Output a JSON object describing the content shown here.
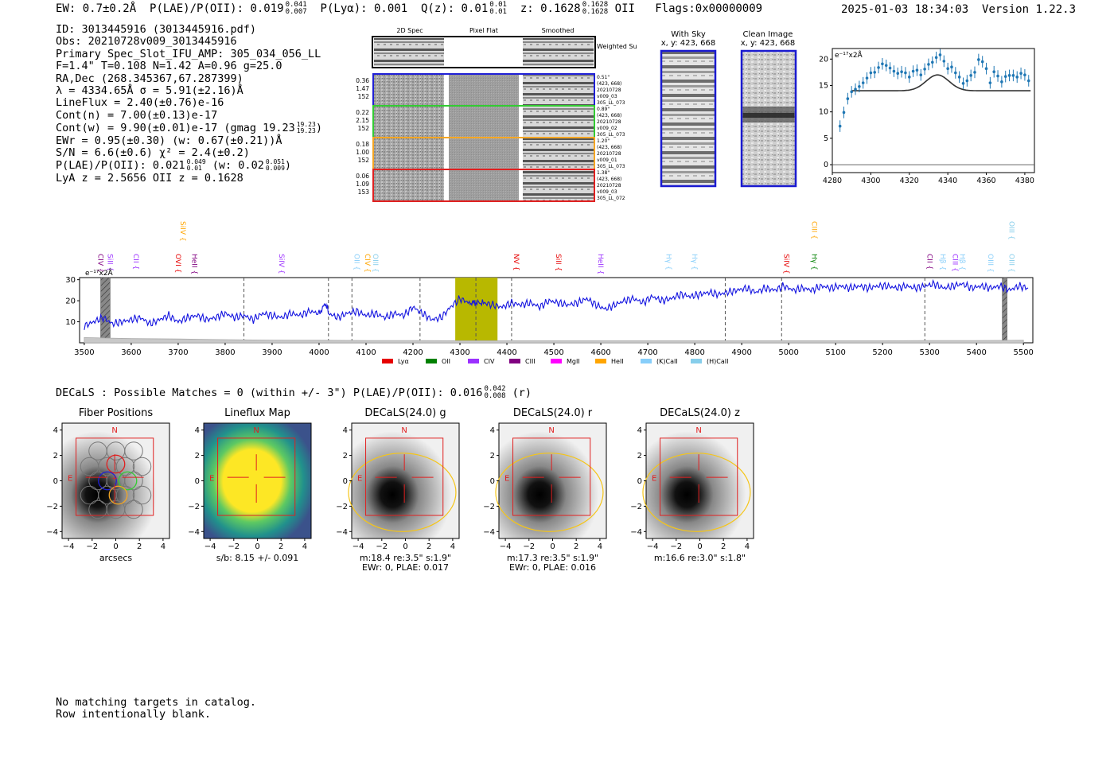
{
  "header": {
    "ew": "EW: 0.7±0.2Å",
    "plae": "P(LAE)/P(OII): 0.019",
    "plae_hi": "0.041",
    "plae_lo": "0.007",
    "plya": "P(Lyα): 0.001",
    "qz": "Q(z): 0.01",
    "qz_hi": "0.01",
    "qz_lo": "0.01",
    "z": "z: 0.1628",
    "z_hi": "0.1628",
    "z_lo": "0.1628",
    "z_line": "OII",
    "flags": "Flags:0x00000009",
    "datetime": "2025-01-03 18:34:03",
    "version": "Version 1.22.3"
  },
  "info": {
    "id": "ID: 3013445916 (3013445916.pdf)",
    "obs": "Obs: 20210728v009_3013445916",
    "slot": "Primary Spec_Slot_IFU_AMP: 305_034_056_LL",
    "fwhm": "F=1.4\"  T=0.108  N=1.42  A=0.96  g=25.0",
    "radec": "RA,Dec (268.345367,67.287399)",
    "lambda": "λ = 4334.65Å  σ = 5.91(±2.16)Å",
    "lineflux": "LineFlux = 2.40(±0.76)e-16",
    "contn": "Cont(n) = 7.00(±0.13)e-17",
    "contw": "Cont(w) = 9.90(±0.01)e-17 (gmag 19.23",
    "contw_hi": "19.23",
    "contw_lo": "19.23",
    "ewr": "EWr = 0.95(±0.30) (w: 0.67(±0.21))Å",
    "sn": "S/N = 6.6(±0.6)  χ² = 2.4(±0.2)",
    "plae2": "P(LAE)/P(OII): 0.021",
    "plae2_hi": "0.049",
    "plae2_lo": "0.01",
    "plae2_w": "(w: 0.02",
    "plae2_w_hi": "0.051",
    "plae2_w_lo": "0.009",
    "lyaz": "LyA z = 2.5656  OII z = 0.1628"
  },
  "cutouts": {
    "col_2dspec": "2D Spec",
    "col_pixflat": "Pixel Flat",
    "col_smoothed": "Smoothed",
    "weighted_sum": "Weighted Sum",
    "rows": [
      {
        "n1": "0.36",
        "n2": "1.47",
        "n3": "152",
        "r1": "0.51\"",
        "r2": "(423, 668)",
        "r3": "20210728",
        "r4": "v009_03",
        "r5": "305_LL_073",
        "color": "#1f1fd6"
      },
      {
        "n1": "0.22",
        "n2": "2.15",
        "n3": "152",
        "r1": "0.89\"",
        "r2": "(423, 668)",
        "r3": "20210728",
        "r4": "v009_02",
        "r5": "305_LL_073",
        "color": "#33cc33"
      },
      {
        "n1": "0.18",
        "n2": "1.00",
        "n3": "152",
        "r1": "1.20\"",
        "r2": "(423, 668)",
        "r3": "20210728",
        "r4": "v009_01",
        "r5": "305_LL_073",
        "color": "#f5a623"
      },
      {
        "n1": "0.06",
        "n2": "1.09",
        "n3": "153",
        "r1": "1.38\"",
        "r2": "(423, 668)",
        "r3": "20210728",
        "r4": "v009_03",
        "r5": "305_LL_072",
        "color": "#e02020"
      }
    ]
  },
  "sky": {
    "with_sky_title": "With Sky",
    "with_sky_xy": "x, y: 423, 668",
    "clean_title": "Clean Image",
    "clean_xy": "x, y: 423, 668"
  },
  "zoom_chart": {
    "unit_label": "e⁻¹⁷x2Å",
    "xlim": [
      4280,
      4385
    ],
    "ylim": [
      -1.5,
      22
    ],
    "xticks": [
      4280,
      4300,
      4320,
      4340,
      4360,
      4380
    ],
    "yticks": [
      0,
      5,
      10,
      15,
      20
    ]
  },
  "chart_data": [
    {
      "type": "scatter",
      "title": "",
      "xlabel": "",
      "ylabel": "e⁻¹⁷x2Å",
      "x": [
        4284,
        4286,
        4288,
        4290,
        4292,
        4294,
        4296,
        4298,
        4300,
        4302,
        4304,
        4306,
        4308,
        4310,
        4312,
        4314,
        4316,
        4318,
        4320,
        4322,
        4324,
        4326,
        4328,
        4330,
        4332,
        4334,
        4336,
        4338,
        4340,
        4342,
        4344,
        4346,
        4348,
        4350,
        4352,
        4354,
        4356,
        4358,
        4360,
        4362,
        4364,
        4366,
        4368,
        4370,
        4372,
        4374,
        4376,
        4378,
        4380,
        4382
      ],
      "y": [
        7.3,
        9.9,
        12.5,
        13.8,
        14.3,
        14.8,
        15.5,
        16.4,
        17.4,
        17.5,
        18.4,
        19.1,
        18.8,
        18.3,
        17.7,
        17.3,
        17.6,
        17.4,
        16.6,
        17.7,
        17.9,
        17.0,
        18.1,
        19.0,
        19.4,
        20.3,
        20.8,
        19.6,
        18.2,
        18.5,
        17.4,
        16.6,
        15.4,
        15.9,
        16.9,
        17.5,
        19.9,
        19.5,
        18.2,
        15.5,
        17.6,
        16.8,
        15.7,
        16.7,
        16.9,
        16.9,
        16.6,
        17.3,
        17.0,
        15.9
      ],
      "fit_baseline": 14.0,
      "fit_peak": 17.0,
      "fit_center": 4334.65,
      "fit_sigma": 5.91,
      "xlim": [
        4280,
        4385
      ],
      "ylim": [
        -1.5,
        22
      ]
    },
    {
      "type": "line",
      "title": "",
      "xlabel": "",
      "ylabel": "e⁻¹⁷x2Å",
      "xlim": [
        3490,
        5520
      ],
      "ylim": [
        0,
        31
      ],
      "xticks": [
        3500,
        3600,
        3700,
        3800,
        3900,
        4000,
        4100,
        4200,
        4300,
        4400,
        4500,
        4600,
        4700,
        4800,
        4900,
        5000,
        5100,
        5200,
        5300,
        5400,
        5500
      ],
      "yticks": [
        10,
        20,
        30
      ],
      "x": [
        3500,
        3520,
        3540,
        3560,
        3580,
        3600,
        3620,
        3640,
        3660,
        3680,
        3700,
        3720,
        3740,
        3760,
        3780,
        3800,
        3820,
        3840,
        3860,
        3880,
        3900,
        3920,
        3940,
        3960,
        3980,
        4000,
        4015,
        4020,
        4040,
        4060,
        4080,
        4100,
        4120,
        4140,
        4160,
        4180,
        4200,
        4220,
        4240,
        4260,
        4280,
        4300,
        4320,
        4334,
        4350,
        4370,
        4390,
        4410,
        4430,
        4450,
        4470,
        4490,
        4510,
        4530,
        4550,
        4570,
        4590,
        4610,
        4630,
        4650,
        4670,
        4690,
        4710,
        4730,
        4750,
        4770,
        4790,
        4810,
        4830,
        4850,
        4870,
        4890,
        4910,
        4930,
        4950,
        4970,
        4990,
        5010,
        5030,
        5050,
        5070,
        5090,
        5110,
        5130,
        5150,
        5170,
        5190,
        5210,
        5230,
        5250,
        5270,
        5290,
        5310,
        5330,
        5350,
        5370,
        5390,
        5410,
        5430,
        5450,
        5470,
        5490,
        5510
      ],
      "y": [
        8,
        10,
        12,
        9,
        10,
        11,
        12,
        9,
        11,
        13,
        10,
        12,
        13,
        11,
        12,
        14,
        12,
        13,
        11,
        14,
        13,
        12,
        14,
        13,
        15,
        14,
        19,
        14,
        12,
        14,
        15,
        13,
        14,
        12,
        14,
        13,
        17,
        14,
        11,
        12,
        17,
        21,
        19,
        19,
        19,
        18,
        17,
        19,
        18,
        19,
        17,
        20,
        19,
        18,
        19,
        21,
        18,
        16,
        18,
        20,
        21,
        19,
        22,
        20,
        21,
        23,
        22,
        23,
        24,
        23,
        24,
        25,
        26,
        24,
        26,
        25,
        27,
        25,
        26,
        25,
        27,
        26,
        27,
        26,
        27,
        26,
        27,
        27,
        26,
        27,
        26,
        27,
        28,
        26,
        27,
        28,
        26,
        27,
        26,
        27,
        25,
        27,
        26
      ],
      "sky_x": [
        3500,
        3600,
        3700,
        3800,
        3900,
        4000,
        4100,
        4200,
        4300,
        4400,
        4500,
        4600,
        4700,
        4800,
        4900,
        5000,
        5100,
        5200,
        5300,
        5400,
        5500
      ],
      "sky_y": [
        2.5,
        2.0,
        1.8,
        1.5,
        1.3,
        1.2,
        1.1,
        1.1,
        1.0,
        1.0,
        1.0,
        1.0,
        1.0,
        1.0,
        1.0,
        1.0,
        1.0,
        1.0,
        1.1,
        1.1,
        1.2
      ],
      "dashed_x": [
        3840,
        4020,
        4070,
        4215,
        4334,
        4410,
        4865,
        4985,
        5290
      ],
      "highlight_band": [
        4290,
        4380
      ],
      "hatched_bands": [
        [
          3535,
          3555
        ],
        [
          5455,
          5465
        ]
      ],
      "legend": [
        "Lyα",
        "OII",
        "CIV",
        "CIII",
        "MgII",
        "HeII",
        "(K)CaII",
        "(H)CaII"
      ],
      "legend_colors": [
        "#e60000",
        "#008000",
        "#9b30ff",
        "#800080",
        "#ff00ff",
        "#ffa500",
        "#87cefa",
        "#87ceeb"
      ],
      "lines_top": [
        {
          "label": "SiIV",
          "x": 3700,
          "color": "#ffa500"
        },
        {
          "label": "CIII",
          "x": 5045,
          "color": "#ffa500"
        },
        {
          "label": "OIII",
          "x": 5465,
          "color": "#87ceeb"
        }
      ],
      "lines_low": [
        {
          "label": "CIV",
          "x": 3525,
          "color": "#800080"
        },
        {
          "label": "SiII",
          "x": 3545,
          "color": "#9b30ff"
        },
        {
          "label": "CII",
          "x": 3600,
          "color": "#9b30ff"
        },
        {
          "label": "OVI",
          "x": 3690,
          "color": "#e60000"
        },
        {
          "label": "HeII",
          "x": 3725,
          "color": "#800080"
        },
        {
          "label": "SiIV",
          "x": 3910,
          "color": "#9b30ff"
        },
        {
          "label": "OII",
          "x": 4070,
          "color": "#87cefa"
        },
        {
          "label": "CIV",
          "x": 4093,
          "color": "#ffa500"
        },
        {
          "label": "OIII",
          "x": 4110,
          "color": "#87ceeb"
        },
        {
          "label": "NV",
          "x": 4410,
          "color": "#e60000"
        },
        {
          "label": "SiII",
          "x": 4500,
          "color": "#e60000"
        },
        {
          "label": "HeII",
          "x": 4590,
          "color": "#9b30ff"
        },
        {
          "label": "Hγ",
          "x": 4735,
          "color": "#87cefa"
        },
        {
          "label": "Hγ",
          "x": 4790,
          "color": "#87cefa"
        },
        {
          "label": "SiIV",
          "x": 4985,
          "color": "#e60000"
        },
        {
          "label": "Hγ",
          "x": 5045,
          "color": "#008000"
        },
        {
          "label": "CII",
          "x": 5290,
          "color": "#800080"
        },
        {
          "label": "Hβ",
          "x": 5318,
          "color": "#87cefa"
        },
        {
          "label": "CIII",
          "x": 5345,
          "color": "#9b30ff"
        },
        {
          "label": "Hβ",
          "x": 5360,
          "color": "#87cefa"
        },
        {
          "label": "OIII",
          "x": 5420,
          "color": "#87cefa"
        },
        {
          "label": "OIII",
          "x": 5465,
          "color": "#87ceeb"
        }
      ]
    }
  ],
  "decals_header": "DECaLS : Possible Matches = 0 (within +/- 3\")  P(LAE)/P(OII): 0.016",
  "decals_hi": "0.042",
  "decals_lo": "0.008",
  "decals_band": "(r)",
  "panels": [
    {
      "title": "Fiber Positions",
      "cap1": "arcsecs",
      "cap2": ""
    },
    {
      "title": "Lineflux Map",
      "cap1": "s/b: 8.15 +/- 0.091",
      "cap2": ""
    },
    {
      "title": "DECaLS(24.0) g",
      "cap1": "m:18.4  re:3.5\"  s:1.9\"",
      "cap2": "EWr: 0, PLAE: 0.017"
    },
    {
      "title": "DECaLS(24.0) r",
      "cap1": "m:17.3  re:3.5\"  s:1.9\"",
      "cap2": "EWr: 0, PLAE: 0.016"
    },
    {
      "title": "DECaLS(24.0) z",
      "cap1": "m:16.6  re:3.0\"  s:1.8\"",
      "cap2": ""
    }
  ],
  "panel_axes": {
    "ticks": [
      "−4",
      "−2",
      "0",
      "2",
      "4"
    ],
    "north": "N",
    "east": "E"
  },
  "footer": {
    "line1": "No matching targets in catalog.",
    "line2": "Row intentionally blank."
  }
}
